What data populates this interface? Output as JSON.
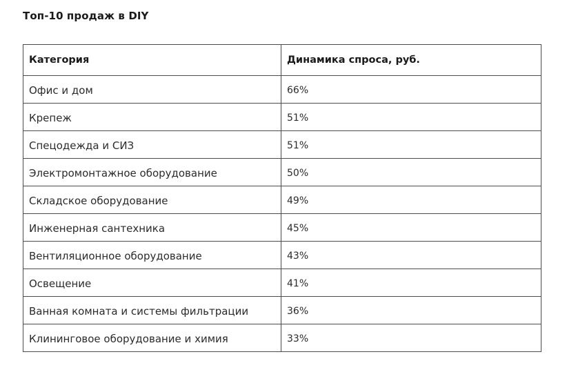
{
  "title": "Топ-10 продаж в DIY",
  "table": {
    "headers": [
      "Категория",
      "Динамика спроса, руб."
    ],
    "rows": [
      [
        "Офис и дом",
        "66%"
      ],
      [
        "Крепеж",
        "51%"
      ],
      [
        "Спецодежда и СИЗ",
        "51%"
      ],
      [
        "Электромонтажное оборудование",
        "50%"
      ],
      [
        "Складское оборудование",
        "49%"
      ],
      [
        "Инженерная сантехника",
        "45%"
      ],
      [
        "Вентиляционное оборудование",
        "43%"
      ],
      [
        "Освещение",
        "41%"
      ],
      [
        "Ванная комната и системы фильтрации",
        "36%"
      ],
      [
        "Клининговое оборудование и химия",
        "33%"
      ]
    ]
  }
}
